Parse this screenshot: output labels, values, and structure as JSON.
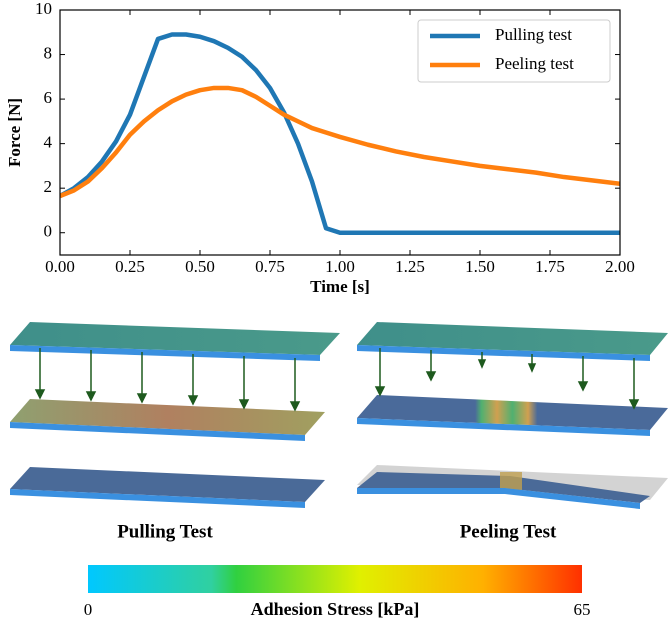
{
  "chart_data": {
    "type": "line",
    "xlabel": "Time [s]",
    "ylabel": "Force [N]",
    "x": [
      0,
      0.05,
      0.1,
      0.15,
      0.2,
      0.25,
      0.3,
      0.35,
      0.4,
      0.45,
      0.5,
      0.55,
      0.6,
      0.65,
      0.7,
      0.75,
      0.8,
      0.85,
      0.9,
      0.95,
      1.0,
      1.1,
      1.2,
      1.3,
      1.4,
      1.5,
      1.6,
      1.7,
      1.8,
      1.9,
      2.0
    ],
    "series": [
      {
        "name": "Pulling test",
        "color": "#1f77b4",
        "values": [
          1.65,
          2.0,
          2.5,
          3.2,
          4.1,
          5.3,
          7.0,
          8.7,
          8.9,
          8.9,
          8.8,
          8.6,
          8.3,
          7.9,
          7.3,
          6.5,
          5.4,
          4.0,
          2.3,
          0.2,
          0,
          0,
          0,
          0,
          0,
          0,
          0,
          0,
          0,
          0,
          0
        ]
      },
      {
        "name": "Peeling test",
        "color": "#ff7f0e",
        "values": [
          1.65,
          1.9,
          2.3,
          2.9,
          3.6,
          4.4,
          5.0,
          5.5,
          5.9,
          6.2,
          6.4,
          6.5,
          6.5,
          6.4,
          6.1,
          5.7,
          5.3,
          5.0,
          4.7,
          4.5,
          4.3,
          3.95,
          3.65,
          3.4,
          3.2,
          3.0,
          2.85,
          2.7,
          2.5,
          2.35,
          2.2
        ]
      }
    ],
    "xlim": [
      0,
      2
    ],
    "xticks": [
      {
        "value": 0,
        "label": "0.00"
      },
      {
        "value": 0.25,
        "label": "0.25"
      },
      {
        "value": 0.5,
        "label": "0.50"
      },
      {
        "value": 0.75,
        "label": "0.75"
      },
      {
        "value": 1,
        "label": "1.00"
      },
      {
        "value": 1.25,
        "label": "1.25"
      },
      {
        "value": 1.5,
        "label": "1.50"
      },
      {
        "value": 1.75,
        "label": "1.75"
      },
      {
        "value": 2,
        "label": "2.00"
      }
    ],
    "ylim": [
      -1,
      10
    ],
    "yticks": [
      0,
      2,
      4,
      6,
      8,
      10
    ],
    "legend": "upper-right"
  },
  "panels": [
    "Pulling Test",
    "Peeling Test"
  ],
  "colorbar": {
    "label": "Adhesion Stress [kPa]",
    "min": 0,
    "max": 65
  }
}
